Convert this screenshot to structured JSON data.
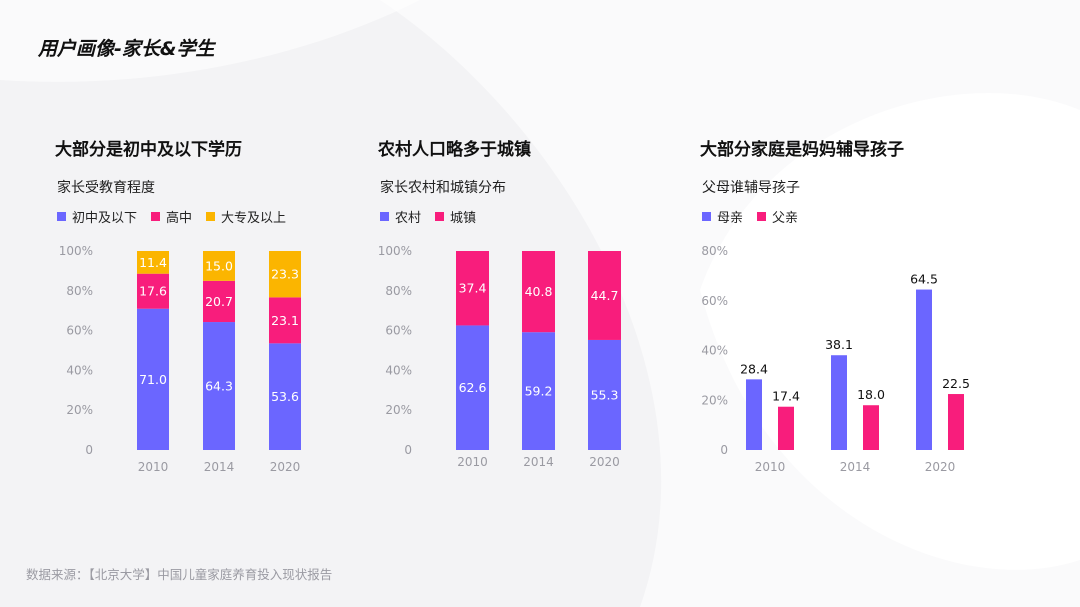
{
  "page_title": "用户画像-家长&学生",
  "source_note": "数据来源：【北京大学】中国儿童家庭养育投入现状报告",
  "colors": {
    "purple": "#6b66ff",
    "pink": "#f81d7c",
    "yellow": "#fbb500"
  },
  "panels": [
    {
      "heading": "大部分是初中及以下学历",
      "subtitle": "家长受教育程度"
    },
    {
      "heading": "农村人口略多于城镇",
      "subtitle": "家长农村和城镇分布"
    },
    {
      "heading": "大部分家庭是妈妈辅导孩子",
      "subtitle": "父母谁辅导孩子"
    }
  ],
  "chart_data": [
    {
      "type": "bar",
      "stacked": true,
      "categories": [
        "2010",
        "2014",
        "2020"
      ],
      "series": [
        {
          "name": "初中及以下",
          "values": [
            71.0,
            64.3,
            53.6
          ],
          "color": "#6b66ff"
        },
        {
          "name": "高中",
          "values": [
            17.6,
            20.7,
            23.1
          ],
          "color": "#f81d7c"
        },
        {
          "name": "大专及以上",
          "values": [
            11.4,
            15.0,
            23.3
          ],
          "color": "#fbb500"
        }
      ],
      "ylim": [
        0,
        100
      ],
      "yticks": [
        "0",
        "20%",
        "40%",
        "60%",
        "80%",
        "100%"
      ],
      "legend": "top-left",
      "grid": false
    },
    {
      "type": "bar",
      "stacked": true,
      "categories": [
        "2010",
        "2014",
        "2020"
      ],
      "series": [
        {
          "name": "农村",
          "values": [
            62.6,
            59.2,
            55.3
          ],
          "color": "#6b66ff"
        },
        {
          "name": "城镇",
          "values": [
            37.4,
            40.8,
            44.7
          ],
          "color": "#f81d7c"
        }
      ],
      "ylim": [
        0,
        100
      ],
      "yticks": [
        "0",
        "20%",
        "40%",
        "60%",
        "80%",
        "100%"
      ],
      "legend": "top-left",
      "grid": false
    },
    {
      "type": "bar",
      "stacked": false,
      "categories": [
        "2010",
        "2014",
        "2020"
      ],
      "series": [
        {
          "name": "母亲",
          "values": [
            28.4,
            38.1,
            64.5
          ],
          "color": "#6b66ff"
        },
        {
          "name": "父亲",
          "values": [
            17.4,
            18.0,
            22.5
          ],
          "color": "#f81d7c"
        }
      ],
      "ylim": [
        0,
        80
      ],
      "yticks": [
        "0",
        "20%",
        "40%",
        "60%",
        "80%"
      ],
      "legend": "top-left",
      "grid": false
    }
  ]
}
